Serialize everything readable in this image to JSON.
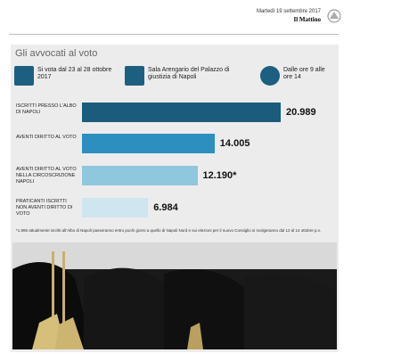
{
  "header": {
    "date": "Martedì 19 settembre 2017",
    "paper": "Il Mattino"
  },
  "info": {
    "when": "Si vota dal 23 al 28 ottobre 2017",
    "where": "Sala Arengario del Palazzo di giustizia di Napoli",
    "hours": "Dalle ore 9 alle ore 14"
  },
  "footnote": "*1.895 attualmente iscritti all'Albo di Napoli passeranno entro pochi giorni a quello di Napoli Nord e sui elezioni per il nuovo Consiglio si svolgeranno dal 12 al 14 ottobre p.v.",
  "chart_data": {
    "type": "bar",
    "orientation": "horizontal",
    "title": "Gli avvocati al voto",
    "categories": [
      "ISCRITTI PRESSO L'ALBO DI NAPOLI",
      "AVENTI DIRITTO AL VOTO",
      "AVENTI DIRITTO AL VOTO NELLA CIRCOSCRIZIONE NAPOLI",
      "PRATICANTI ISCRITTI NON AVENTI DIRITTO DI VOTO"
    ],
    "values": [
      20989,
      14005,
      12190,
      6984
    ],
    "value_labels": [
      "20.989",
      "14.005",
      "12.190*",
      "6.984"
    ],
    "colors": [
      "#1b5c7c",
      "#2c8fbf",
      "#8ec7de",
      "#cfe5ef"
    ]
  }
}
